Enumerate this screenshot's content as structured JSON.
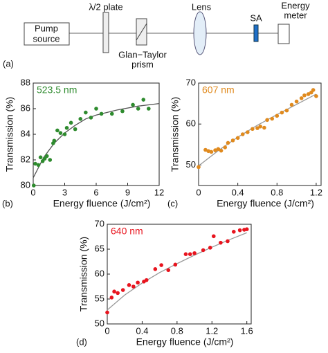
{
  "diagram": {
    "pump": [
      "Pump",
      "source"
    ],
    "plate": "λ/2 plate",
    "prism": [
      "Glan−Taylor",
      "prism"
    ],
    "lens": "Lens",
    "sa": "SA",
    "meter": [
      "Energy",
      "meter"
    ],
    "panel_label": "(a)"
  },
  "chart_data": [
    {
      "type": "scatter",
      "panel_label": "(b)",
      "annotation": "523.5 nm",
      "annotation_color": "#2e8b2e",
      "x_label": "Energy fluence (J/cm²)",
      "y_label": "Transmission (%)",
      "xlim": [
        0,
        12
      ],
      "xticks": [
        0,
        3,
        6,
        9,
        12
      ],
      "ylim": [
        80,
        88
      ],
      "yticks": [
        80,
        82,
        84,
        86,
        88
      ],
      "series": [
        {
          "color": "#2e8b2e",
          "x": [
            0.05,
            0.2,
            0.5,
            0.7,
            0.9,
            1.1,
            1.3,
            1.6,
            1.9,
            2.0,
            2.3,
            2.6,
            3.0,
            3.2,
            3.6,
            4.0,
            4.5,
            5.0,
            5.5,
            6.0,
            6.5,
            7.5,
            8.5,
            9.5,
            10.0,
            10.5,
            11.0
          ],
          "values": [
            80.0,
            81.7,
            81.6,
            82.2,
            81.9,
            82.1,
            82.3,
            82.0,
            83.3,
            83.5,
            84.3,
            84.1,
            84.0,
            84.5,
            84.9,
            84.4,
            85.2,
            85.7,
            85.3,
            86.0,
            85.6,
            85.6,
            85.8,
            86.3,
            86.0,
            86.7,
            86.0
          ]
        },
        {
          "type": "line",
          "color": "#555555",
          "x": [
            0,
            1,
            2,
            3,
            4,
            5,
            6,
            8,
            10,
            12
          ],
          "values": [
            80.6,
            82.2,
            83.3,
            84.1,
            84.7,
            85.2,
            85.5,
            85.9,
            86.2,
            86.4
          ]
        }
      ]
    },
    {
      "type": "scatter",
      "panel_label": "(c)",
      "annotation": "607 nm",
      "annotation_color": "#e08a1e",
      "x_label": "Energy fluence (J/cm²)",
      "y_label": "Transmission (%)",
      "xlim": [
        0,
        1.25
      ],
      "xticks": [
        0,
        0.4,
        0.8,
        1.2
      ],
      "ylim": [
        45,
        70
      ],
      "yticks": [
        50,
        60,
        70
      ],
      "series": [
        {
          "color": "#e08a1e",
          "x": [
            0.0,
            0.07,
            0.1,
            0.13,
            0.17,
            0.2,
            0.23,
            0.27,
            0.3,
            0.35,
            0.4,
            0.45,
            0.5,
            0.55,
            0.6,
            0.63,
            0.67,
            0.7,
            0.75,
            0.8,
            0.85,
            0.9,
            0.95,
            1.0,
            1.05,
            1.08,
            1.12,
            1.15,
            1.17,
            1.2
          ],
          "values": [
            49.5,
            53.7,
            53.4,
            53.2,
            53.6,
            53.9,
            53.5,
            54.3,
            55.4,
            56.0,
            56.6,
            57.5,
            58.0,
            58.8,
            59.0,
            59.4,
            59.1,
            61.0,
            61.3,
            62.0,
            62.8,
            63.3,
            64.7,
            65.5,
            66.3,
            67.0,
            67.3,
            67.7,
            68.3,
            66.8
          ]
        },
        {
          "type": "line",
          "color": "#999999",
          "x": [
            0,
            0.2,
            0.4,
            0.6,
            0.8,
            1.0,
            1.2
          ],
          "values": [
            49.8,
            53.5,
            56.8,
            59.7,
            62.3,
            64.8,
            67.3
          ]
        }
      ]
    },
    {
      "type": "scatter",
      "panel_label": "(d)",
      "annotation": "640 nm",
      "annotation_color": "#e8141e",
      "x_label": "Energy fluence (J/cm²)",
      "y_label": "Transmission (%)",
      "xlim": [
        0,
        1.65
      ],
      "xticks": [
        0,
        0.4,
        0.8,
        1.2,
        1.6
      ],
      "ylim": [
        50,
        70
      ],
      "yticks": [
        50,
        55,
        60,
        65,
        70
      ],
      "series": [
        {
          "color": "#e8141e",
          "x": [
            0,
            0.05,
            0.08,
            0.12,
            0.18,
            0.25,
            0.3,
            0.35,
            0.42,
            0.45,
            0.55,
            0.62,
            0.7,
            0.78,
            0.9,
            0.95,
            1.0,
            1.1,
            1.18,
            1.22,
            1.3,
            1.38,
            1.45,
            1.52,
            1.57,
            1.6
          ],
          "values": [
            52.3,
            55.3,
            56.5,
            56.2,
            56.8,
            57.8,
            57.5,
            58.3,
            58.5,
            58.8,
            61.0,
            61.8,
            60.8,
            61.9,
            64.0,
            64.0,
            64.2,
            64.8,
            65.3,
            67.6,
            66.3,
            66.6,
            68.5,
            68.8,
            68.9,
            69.0
          ]
        },
        {
          "type": "line",
          "color": "#999999",
          "x": [
            0,
            0.2,
            0.4,
            0.6,
            0.8,
            1.0,
            1.2,
            1.4,
            1.6
          ],
          "values": [
            52.8,
            55.8,
            58.2,
            60.3,
            62.1,
            63.8,
            65.4,
            66.9,
            68.3
          ]
        }
      ]
    }
  ]
}
